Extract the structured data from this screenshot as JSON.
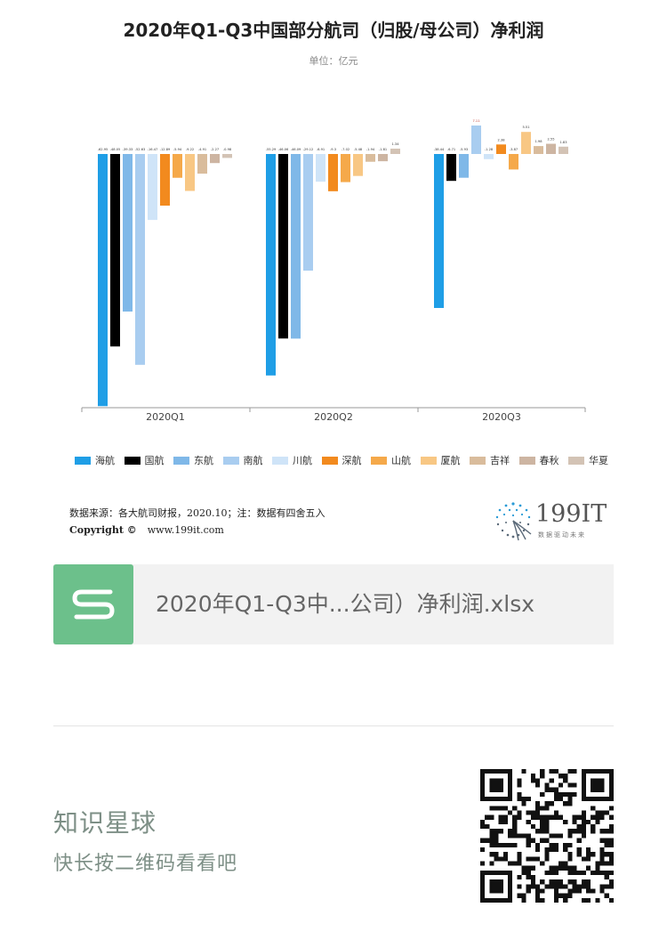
{
  "chart_data": {
    "type": "bar",
    "title": "2020年Q1-Q3中国部分航司（归股/母公司）净利润",
    "subtitle": "单位：亿元",
    "categories": [
      "2020Q1",
      "2020Q2",
      "2020Q3"
    ],
    "ylim": [
      -63,
      11
    ],
    "grid": false,
    "legend_position": "bottom",
    "series": [
      {
        "name": "海航",
        "color": "#1f9ee6",
        "values": [
          -62.95,
          -55.29,
          -38.44
        ],
        "labels": [
          "-62.95",
          "-55.29",
          "-38.44"
        ]
      },
      {
        "name": "国航",
        "color": "#000000",
        "values": [
          -48.05,
          -46.06,
          -6.71
        ],
        "labels": [
          "-48.05",
          "-46.06",
          "-6.71"
        ]
      },
      {
        "name": "东航",
        "color": "#7fb8e8",
        "values": [
          -39.33,
          -46.09,
          -5.93
        ],
        "labels": [
          "-39.33",
          "-46.09",
          "-5.93"
        ]
      },
      {
        "name": "南航",
        "color": "#a9cdf0",
        "values": [
          -52.63,
          -29.12,
          7.11
        ],
        "labels": [
          "-52.63",
          "-29.12",
          "7.11"
        ]
      },
      {
        "name": "川航",
        "color": "#cfe4f8",
        "values": [
          -16.47,
          -6.91,
          -1.28
        ],
        "labels": [
          "-16.47",
          "-6.91",
          "-1.28"
        ]
      },
      {
        "name": "深航",
        "color": "#f28a1e",
        "values": [
          -12.89,
          -9.3,
          2.38
        ],
        "labels": [
          "-12.89",
          "-9.3",
          "2.38"
        ]
      },
      {
        "name": "山航",
        "color": "#f5a94a",
        "values": [
          -5.94,
          -7.02,
          -3.87
        ],
        "labels": [
          "-5.94",
          "-7.02",
          "-3.87"
        ]
      },
      {
        "name": "厦航",
        "color": "#f8c784",
        "values": [
          -9.22,
          -5.48,
          5.51
        ],
        "labels": [
          "-9.22",
          "-5.48",
          "5.51"
        ]
      },
      {
        "name": "吉祥",
        "color": "#d9bc9c",
        "values": [
          -4.91,
          -1.94,
          1.98
        ],
        "labels": [
          "-4.91",
          "-1.94",
          "1.98"
        ]
      },
      {
        "name": "春秋",
        "color": "#cdb5a2",
        "values": [
          -2.27,
          -1.81,
          2.55
        ],
        "labels": [
          "-2.27",
          "-1.81",
          "2.55"
        ]
      },
      {
        "name": "华夏",
        "color": "#d3c3b5",
        "values": [
          -0.98,
          1.34,
          1.83
        ],
        "labels": [
          "-0.98",
          "1.34",
          "1.83"
        ]
      }
    ]
  },
  "footer": {
    "source": "数据来源：各大航司财报，2020.10；注：数据有四舍五入",
    "copyright_label": "Copyright ©",
    "copyright_url": "www.199it.com",
    "brand_name": "199IT",
    "brand_tagline": "数据驱动未来"
  },
  "file_card": {
    "icon": "spreadsheet-s-icon",
    "icon_color": "#6cc08b",
    "filename": "2020年Q1-Q3中...公司）净利润.xlsx"
  },
  "promo": {
    "title": "知识星球",
    "subtitle": "快长按二维码看看吧",
    "qr_icon": "qr-code-icon"
  }
}
